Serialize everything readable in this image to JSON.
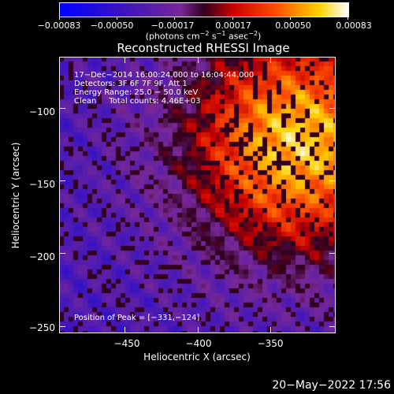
{
  "chart_data": {
    "type": "heatmap",
    "title": "Reconstructed RHESSI Image",
    "xlabel": "Heliocentric X (arcsec)",
    "ylabel": "Heliocentric Y (arcsec)",
    "xlim": [
      -495,
      -305
    ],
    "ylim": [
      -255,
      -65
    ],
    "x_ticks": [
      -450,
      -400,
      -350
    ],
    "x_tick_labels": [
      "−450",
      "−400",
      "−350"
    ],
    "y_ticks": [
      -100,
      -150,
      -200,
      -250
    ],
    "y_tick_labels": [
      "−100",
      "−150",
      "−200",
      "−250"
    ],
    "colorbar": {
      "range": [
        -0.00083,
        0.00083
      ],
      "ticks": [
        -0.00083,
        -0.0005,
        -0.00017,
        0.00017,
        0.0005,
        0.00083
      ],
      "tick_labels": [
        "−0.00083",
        "−0.00050",
        "−0.00017",
        "0.00017",
        "0.00050",
        "0.00083"
      ],
      "units_parts": [
        "(photons cm",
        "−2",
        " s",
        "−1",
        " asec",
        "−2",
        ")"
      ]
    },
    "peak": {
      "x": -331,
      "y": -124
    },
    "annotations": [
      "17−Dec−2014 16:00:24.000 to 16:04:44.000",
      "Detectors: 3F 6F 7F 9F, Att 1",
      "Energy Range: 25.0 − 50.0 keV",
      "Clean     Total counts: 4.46E+03"
    ],
    "peak_label": "Position of Peak = [−331,−124]"
  },
  "timestamp": "20−May−2022 17:56"
}
